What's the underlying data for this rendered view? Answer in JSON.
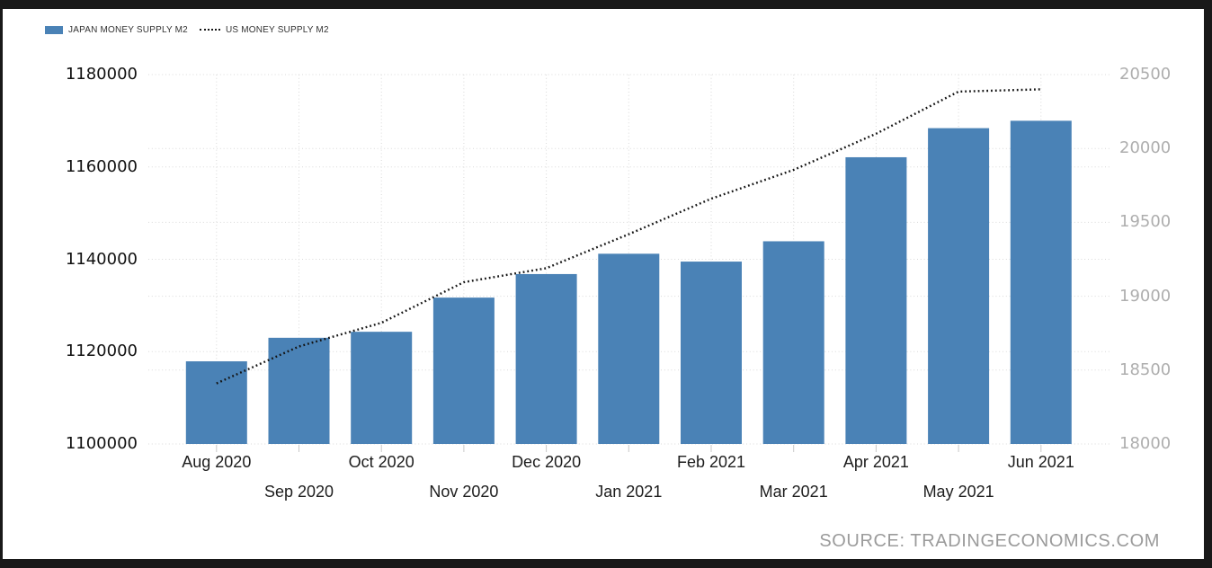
{
  "legend": {
    "japan": {
      "label": "JAPAN MONEY SUPPLY M2"
    },
    "us": {
      "label": "US MONEY SUPPLY M2"
    }
  },
  "source_label": "SOURCE: TRADINGECONOMICS.COM",
  "colors": {
    "bar": "#4a82b6",
    "line": "#141414",
    "grid": "#d9d9d9",
    "axis_tick_mark": "#c9c9c9",
    "left_axis_text": "#111111",
    "right_axis_text": "#aeaeae",
    "x_axis_text": "#1d1d1d",
    "source_text": "#9b9b9b",
    "frame": "#191919"
  },
  "chart_data": {
    "type": "bar",
    "subtype": "bar-with-dotted-line-overlay",
    "grid": "dotted",
    "legend_position": "top-left",
    "x_label_layout": "staggered-two-rows",
    "categories": [
      "Aug 2020",
      "Sep 2020",
      "Oct 2020",
      "Nov 2020",
      "Dec 2020",
      "Jan 2021",
      "Feb 2021",
      "Mar 2021",
      "Apr 2021",
      "May 2021",
      "Jun 2021"
    ],
    "series": [
      {
        "name": "JAPAN MONEY SUPPLY M2",
        "kind": "bar",
        "axis": "left",
        "color": "#4a82b6",
        "values": [
          1117900,
          1123000,
          1124300,
          1131700,
          1136800,
          1141200,
          1139500,
          1143900,
          1162100,
          1168400,
          1170000
        ]
      },
      {
        "name": "US MONEY SUPPLY M2",
        "kind": "line",
        "style": "dotted",
        "axis": "right",
        "color": "#141414",
        "values": [
          18410,
          18660,
          18820,
          19095,
          19190,
          19420,
          19660,
          19855,
          20100,
          20385,
          20400
        ]
      }
    ],
    "left_axis": {
      "tick_labels": [
        "1180000",
        "1160000",
        "1140000",
        "1120000",
        "1100000"
      ],
      "ylim": [
        1100000,
        1180000
      ]
    },
    "right_axis": {
      "tick_labels": [
        "20500",
        "20000",
        "19500",
        "19000",
        "18500",
        "18000"
      ],
      "ylim": [
        18000,
        20500
      ]
    }
  }
}
